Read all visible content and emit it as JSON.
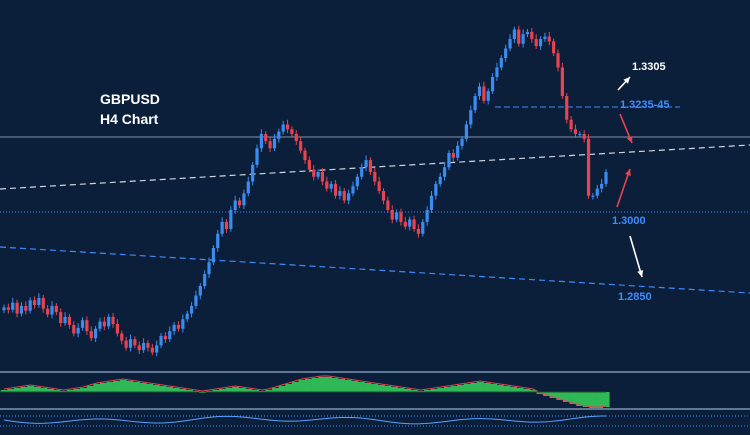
{
  "chart_data": {
    "type": "candlestick",
    "title": "GBPUSD",
    "subtitle": "H4 Chart",
    "price_levels": [
      {
        "label": "1.3305",
        "value": 1.3305,
        "color": "#ffffff"
      },
      {
        "label": "1.3235-45",
        "value": 1.324,
        "color": "#3d8bff"
      },
      {
        "label": "1.3000",
        "value": 1.3,
        "color": "#3d8bff"
      },
      {
        "label": "1.2850",
        "value": 1.285,
        "color": "#3d8bff"
      }
    ],
    "ohlc_close": [
      1.2875,
      1.287,
      1.2885,
      1.2862,
      1.2878,
      1.2868,
      1.289,
      1.288,
      1.2895,
      1.2872,
      1.286,
      1.2878,
      1.2865,
      1.2842,
      1.2855,
      1.2838,
      1.282,
      1.2832,
      1.2848,
      1.2825,
      1.281,
      1.283,
      1.2845,
      1.2835,
      1.2855,
      1.284,
      1.282,
      1.2805,
      1.279,
      1.2808,
      1.2795,
      1.2785,
      1.28,
      1.279,
      1.278,
      1.2795,
      1.2815,
      1.2808,
      1.2825,
      1.2838,
      1.283,
      1.285,
      1.2862,
      1.2878,
      1.29,
      1.292,
      1.2945,
      1.297,
      1.3,
      1.303,
      1.3055,
      1.304,
      1.308,
      1.31,
      1.309,
      1.3115,
      1.314,
      1.3175,
      1.321,
      1.324,
      1.3225,
      1.321,
      1.323,
      1.3245,
      1.326,
      1.325,
      1.324,
      1.3225,
      1.3205,
      1.3185,
      1.3165,
      1.315,
      1.316,
      1.314,
      1.3125,
      1.3135,
      1.311,
      1.312,
      1.31,
      1.3115,
      1.313,
      1.315,
      1.317,
      1.3185,
      1.316,
      1.314,
      1.312,
      1.31,
      1.308,
      1.306,
      1.3075,
      1.3055,
      1.3045,
      1.306,
      1.304,
      1.303,
      1.3055,
      1.308,
      1.311,
      1.3135,
      1.315,
      1.317,
      1.32,
      1.319,
      1.3215,
      1.323,
      1.326,
      1.329,
      1.332,
      1.334,
      1.331,
      1.333,
      1.336,
      1.338,
      1.34,
      1.342,
      1.344,
      1.346,
      1.343,
      1.345,
      1.3455,
      1.344,
      1.3425,
      1.344,
      1.3445,
      1.3435,
      1.341,
      1.338,
      1.332,
      1.327,
      1.325,
      1.324,
      1.324,
      1.323,
      1.311,
      1.311,
      1.3125,
      1.3135,
      1.316
    ],
    "indicator_histogram": [
      2,
      3,
      4,
      5,
      6,
      5,
      4,
      3,
      2,
      1,
      2,
      3,
      4,
      6,
      8,
      9,
      10,
      11,
      12,
      11,
      10,
      9,
      8,
      7,
      6,
      5,
      4,
      3,
      2,
      1,
      0,
      1,
      2,
      3,
      4,
      5,
      4,
      3,
      2,
      1,
      2,
      4,
      6,
      8,
      10,
      12,
      13,
      14,
      15,
      15,
      14,
      13,
      12,
      11,
      10,
      9,
      8,
      7,
      6,
      5,
      4,
      3,
      2,
      1,
      2,
      3,
      4,
      5,
      6,
      7,
      8,
      9,
      10,
      9,
      8,
      7,
      6,
      5,
      4,
      3,
      2,
      -2,
      -4,
      -6,
      -8,
      -10,
      -12,
      -14,
      -15,
      -16,
      -16,
      -15
    ],
    "ylim": [
      1.276,
      1.348
    ]
  }
}
